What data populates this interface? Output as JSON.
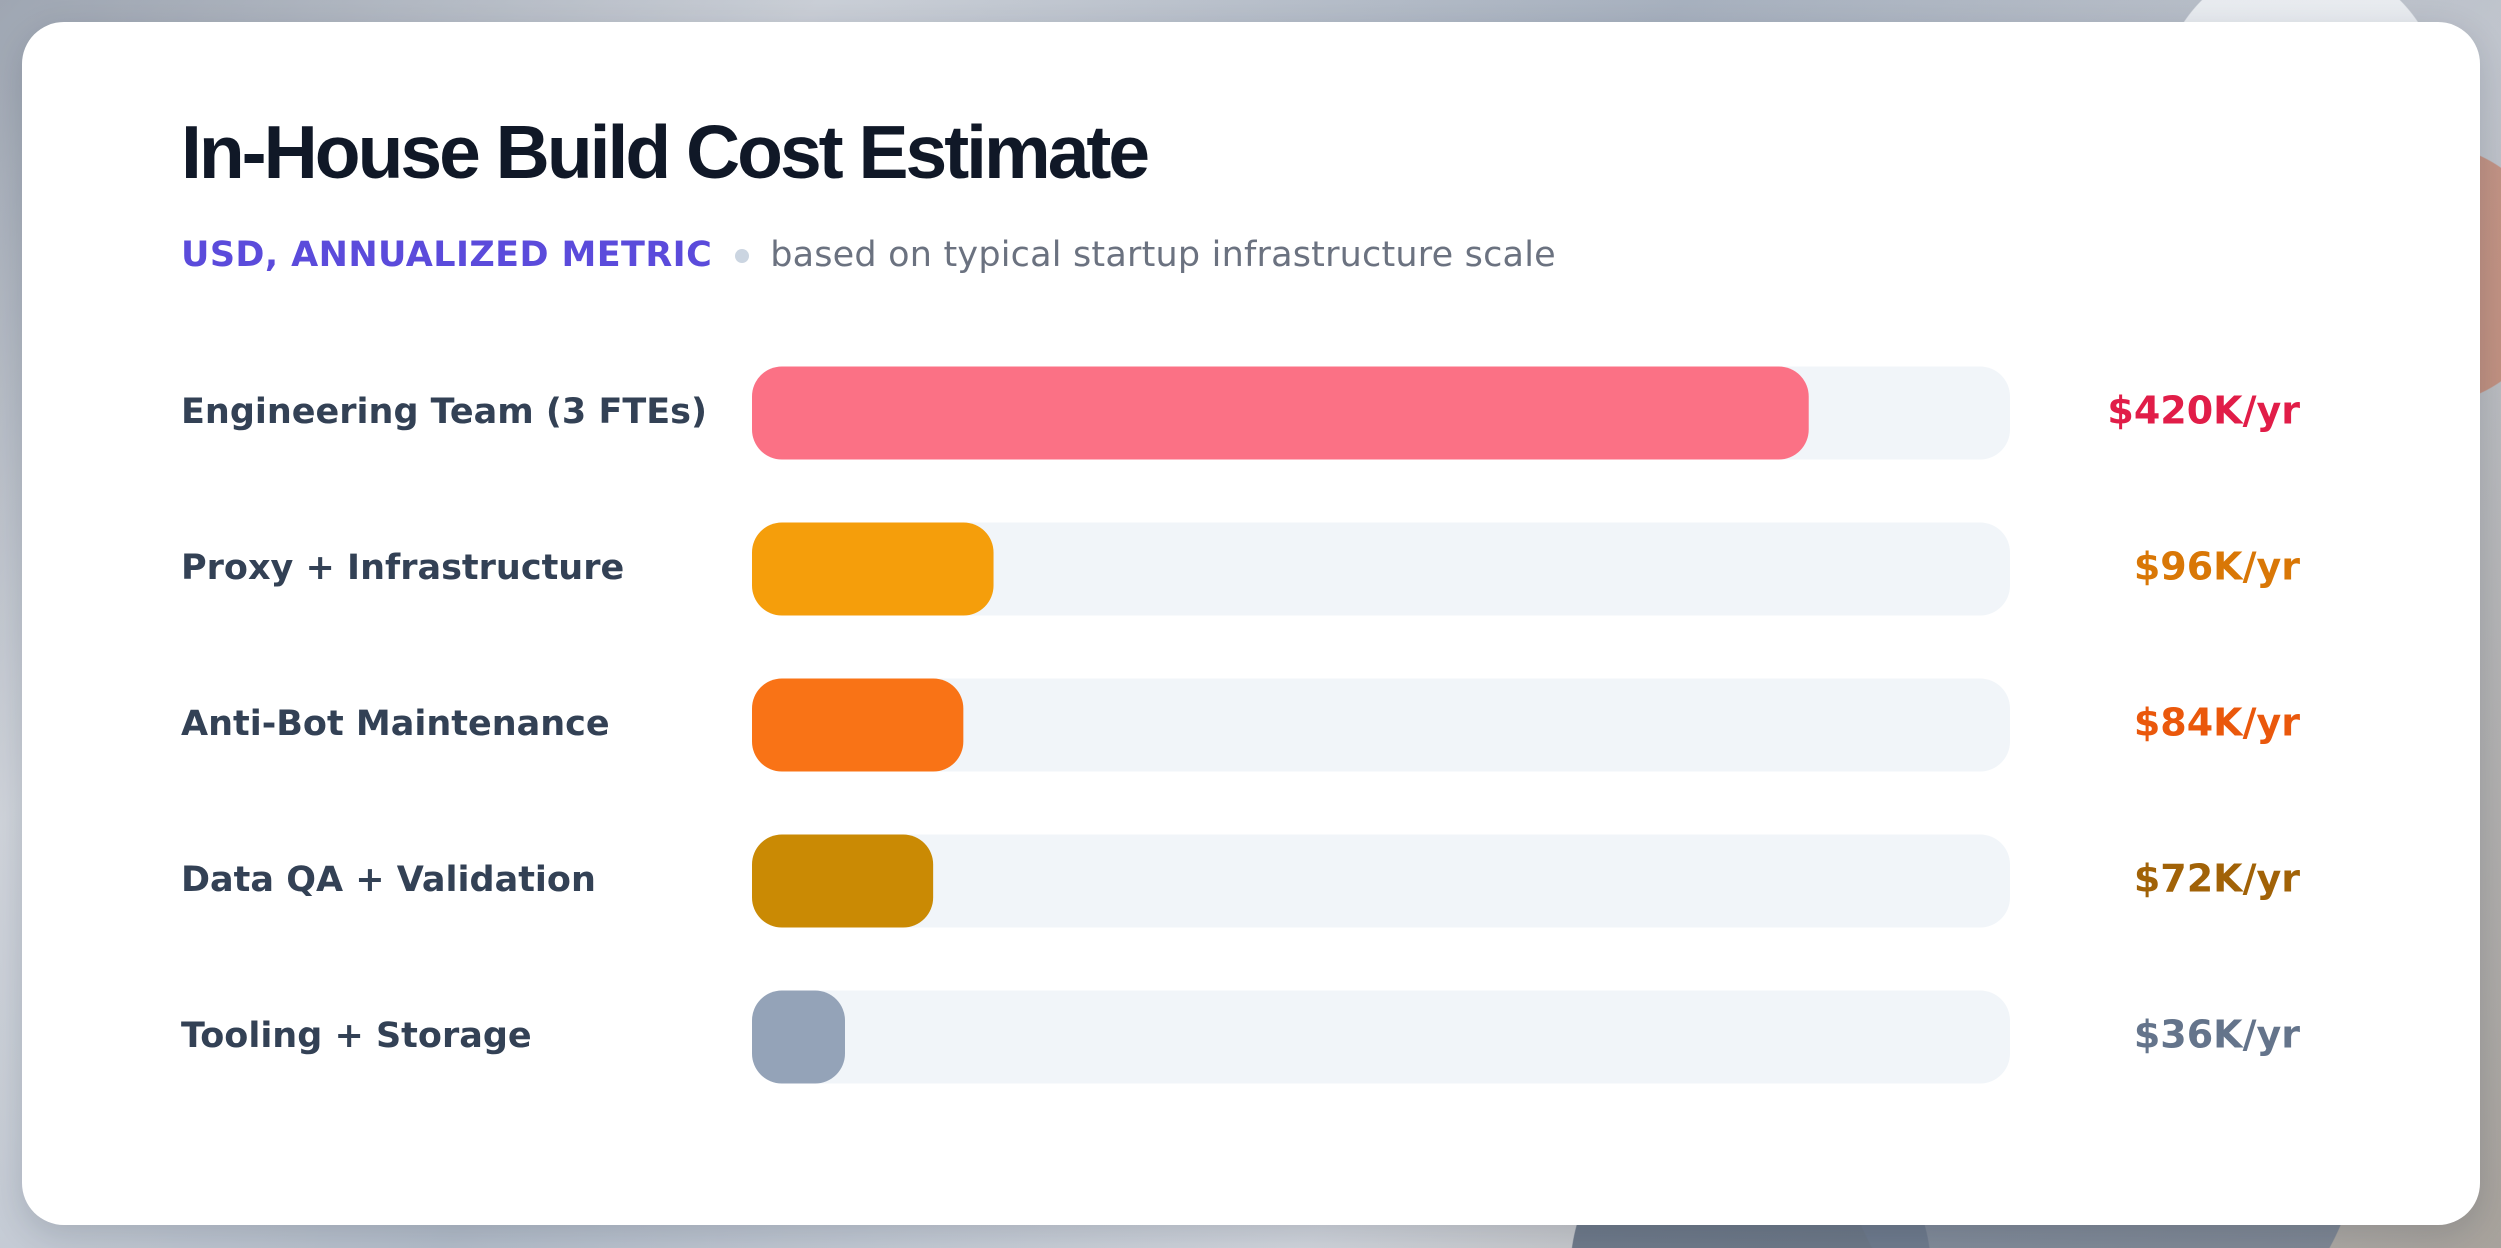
{
  "header": {
    "title": "In-House Build Cost Estimate",
    "subtitle_metric": "USD, ANNUALIZED METRIC",
    "subtitle_note": "based on typical startup infrastructure scale"
  },
  "chart_data": {
    "type": "bar",
    "orientation": "horizontal",
    "title": "In-House Build Cost Estimate",
    "subtitle": "USD, ANNUALIZED METRIC • based on typical startup infrastructure scale",
    "xlabel": "",
    "ylabel": "",
    "xlim": [
      0,
      500
    ],
    "grid": false,
    "legend": "none",
    "categories": [
      "Engineering Team (3 FTEs)",
      "Proxy + Infrastructure",
      "Anti-Bot Maintenance",
      "Data QA + Validation",
      "Tooling + Storage"
    ],
    "values": [
      420,
      96,
      84,
      72,
      36
    ],
    "value_labels": [
      "$420K/yr",
      "$96K/yr",
      "$84K/yr",
      "$72K/yr",
      "$36K/yr"
    ],
    "colors": [
      "#fb7185",
      "#f59e0b",
      "#f97316",
      "#ca8a04",
      "#94a3b8"
    ],
    "value_label_colors": [
      "#e11d48",
      "#d97706",
      "#ea580c",
      "#a16207",
      "#64748b"
    ],
    "track_color": "#f1f5f9"
  },
  "colors": {
    "accent": "#5b4bdb",
    "title": "#101827",
    "muted": "#64748b",
    "background_card": "#ffffff"
  }
}
